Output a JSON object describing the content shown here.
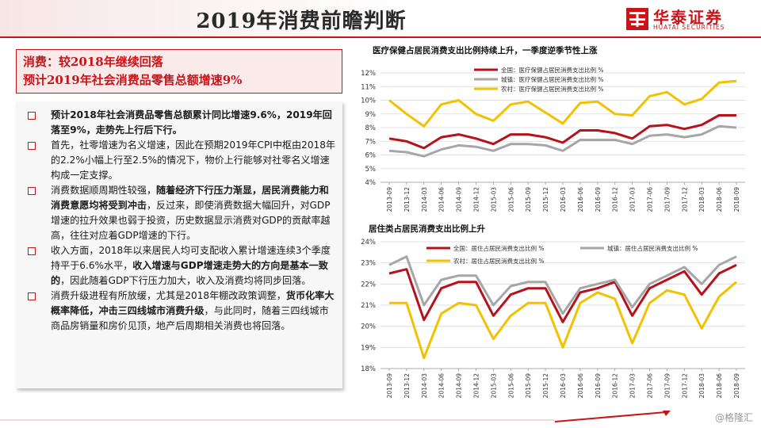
{
  "header": {
    "title": "2019年消费前瞻判断",
    "logo_cn": "华泰证券",
    "logo_en": "HUATAI SECURITIES"
  },
  "summary": {
    "line1": "消费：较2018年继续回落",
    "line2": "预计2019年社会消费品零售总额增速9%"
  },
  "bullets": [
    {
      "parts": [
        {
          "t": "预计2018年社会消费品零售总额累计同比增速9.6%，2019年回落至9%，走势先上行后下行。",
          "b": true
        }
      ]
    },
    {
      "parts": [
        {
          "t": "首先，社零增速为名义增速，因此在预期2019年CPI中枢由2018年的2.2%小幅上行至2.5%的情况下，物价上行能够对社零名义增速构成一定支撑。",
          "b": false
        }
      ]
    },
    {
      "parts": [
        {
          "t": "消费数据顺周期性较强，",
          "b": false
        },
        {
          "t": "随着经济下行压力渐显，居民消费能力和消费意愿均将受到冲击",
          "b": true
        },
        {
          "t": "，反过来，即使消费数据大幅回升，对GDP增速的拉升效果也弱于投资，历史数据显示消费对GDP的贡献率越高，往往对应着GDP增速的下行。",
          "b": false
        }
      ]
    },
    {
      "parts": [
        {
          "t": "收入方面，2018年以来居民人均可支配收入累计增速连续3个季度持平于6.6%水平，",
          "b": false
        },
        {
          "t": "收入增速与GDP增速走势大的方向是基本一致的",
          "b": true
        },
        {
          "t": "，因此随着GDP下行压力加大，收入及消费均将同步回落。",
          "b": false
        }
      ]
    },
    {
      "parts": [
        {
          "t": "消费升级进程有所放缓，尤其是2018年棚改政策调整，",
          "b": false
        },
        {
          "t": "货币化率大概率降低，冲击三四线城市消费升级",
          "b": true
        },
        {
          "t": "，与此同时，随着三四线城市商品房销量和房价见顶，地产后周期相关消费也将回落。",
          "b": false
        }
      ]
    }
  ],
  "colors": {
    "accent": "#c9141a",
    "national": "#b5121b",
    "urban": "#a6a6a6",
    "rural": "#f2c200"
  },
  "watermark": "@格隆汇",
  "chart_data": [
    {
      "type": "line",
      "title": "医疗保健占居民消费支出比例持续上升，一季度逆季节性上涨",
      "categories": [
        "2013-09",
        "2013-12",
        "2014-03",
        "2014-06",
        "2014-09",
        "2014-12",
        "2015-03",
        "2015-06",
        "2015-09",
        "2015-12",
        "2016-03",
        "2016-06",
        "2016-09",
        "2016-12",
        "2017-03",
        "2017-06",
        "2017-09",
        "2017-12",
        "2018-03",
        "2018-06",
        "2018-09"
      ],
      "ylim": [
        4,
        12
      ],
      "yticks": [
        "4%",
        "5%",
        "6%",
        "7%",
        "8%",
        "9%",
        "10%",
        "11%",
        "12%"
      ],
      "legend_position": "top-right",
      "series": [
        {
          "name": "全国：医疗保健占居民消费支出比例 %",
          "color": "#b5121b",
          "values": [
            7.2,
            7.0,
            6.5,
            7.3,
            7.5,
            7.2,
            6.8,
            7.5,
            7.5,
            7.3,
            6.9,
            7.8,
            7.8,
            7.6,
            7.2,
            8.1,
            8.2,
            7.9,
            8.2,
            8.9,
            8.9
          ]
        },
        {
          "name": "城镇：医疗保健占居民消费支出比例 %",
          "color": "#a6a6a6",
          "values": [
            6.3,
            6.2,
            5.9,
            6.4,
            6.7,
            6.6,
            6.3,
            6.8,
            6.8,
            6.7,
            6.3,
            7.1,
            7.1,
            7.1,
            6.8,
            7.4,
            7.5,
            7.3,
            7.5,
            8.1,
            8.0
          ]
        },
        {
          "name": "农村：医疗保健占居民消费支出比例 %",
          "color": "#f2c200",
          "values": [
            10.0,
            9.0,
            8.1,
            9.7,
            10.0,
            9.0,
            8.5,
            9.7,
            9.9,
            9.1,
            8.3,
            9.8,
            9.9,
            9.0,
            8.9,
            10.3,
            10.6,
            9.7,
            10.1,
            11.3,
            11.4
          ]
        }
      ]
    },
    {
      "type": "line",
      "title": "居住类占居民消费支出比例上升",
      "categories": [
        "2013-09",
        "2013-12",
        "2014-03",
        "2014-06",
        "2014-09",
        "2014-12",
        "2015-03",
        "2015-06",
        "2015-09",
        "2015-12",
        "2016-03",
        "2016-06",
        "2016-09",
        "2016-12",
        "2017-03",
        "2017-06",
        "2017-09",
        "2017-12",
        "2018-03",
        "2018-06",
        "2018-09"
      ],
      "ylim": [
        18,
        24
      ],
      "yticks": [
        "18%",
        "19%",
        "20%",
        "21%",
        "22%",
        "23%",
        "24%"
      ],
      "legend_position": "top",
      "series": [
        {
          "name": "全国：居住占居民消费支出比例 %",
          "color": "#b5121b",
          "values": [
            22.5,
            22.7,
            20.3,
            21.8,
            22.1,
            22.1,
            20.5,
            21.5,
            21.8,
            21.8,
            20.2,
            21.6,
            21.8,
            22.1,
            20.5,
            21.8,
            22.2,
            22.6,
            21.5,
            22.5,
            22.9
          ]
        },
        {
          "name": "城镇：居住占居民消费支出比例 %",
          "color": "#a6a6a6",
          "values": [
            22.9,
            23.3,
            21.0,
            22.2,
            22.4,
            22.4,
            21.0,
            21.9,
            22.1,
            22.1,
            20.6,
            21.8,
            22.0,
            22.2,
            20.9,
            22.0,
            22.4,
            22.8,
            22.0,
            22.9,
            23.3
          ]
        },
        {
          "name": "农村：居住占居民消费支出比例 %",
          "color": "#f2c200",
          "values": [
            21.1,
            21.1,
            18.5,
            20.6,
            21.1,
            21.0,
            19.4,
            20.5,
            21.1,
            21.1,
            19.0,
            21.1,
            21.6,
            21.3,
            19.2,
            21.1,
            21.7,
            21.5,
            19.9,
            21.4,
            22.1
          ]
        }
      ]
    }
  ]
}
